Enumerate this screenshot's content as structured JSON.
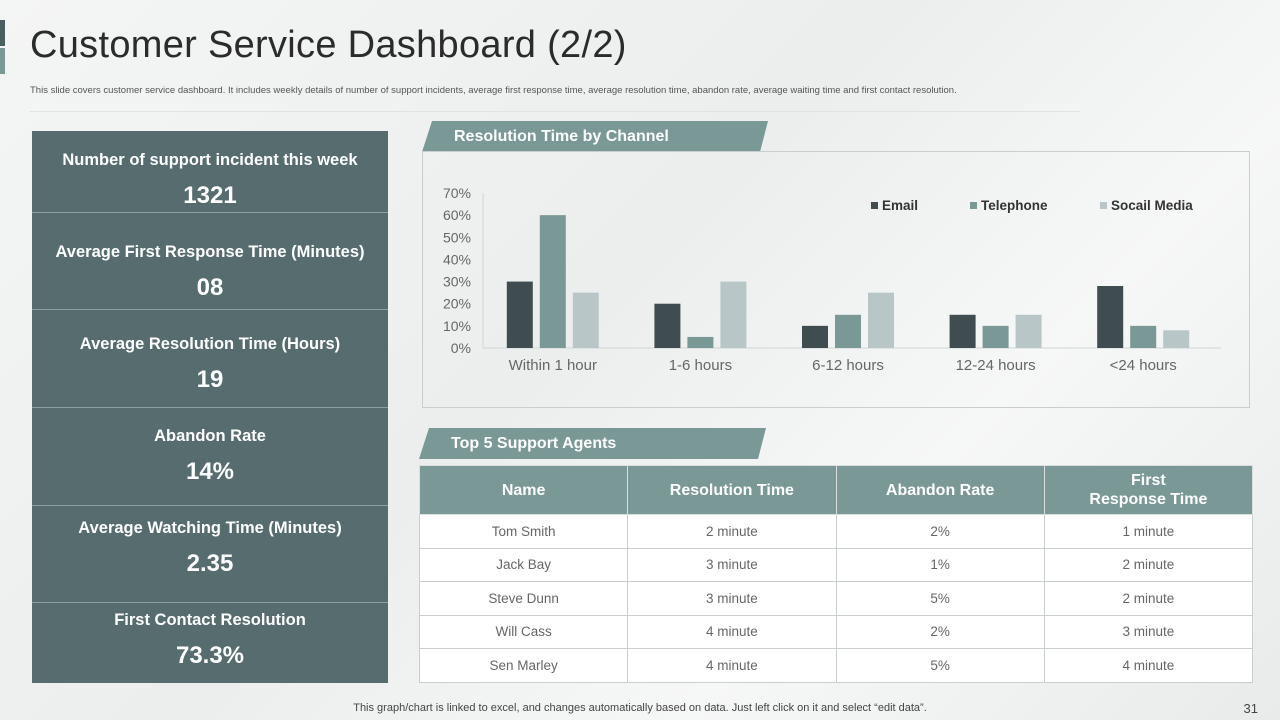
{
  "header": {
    "title": "Customer Service Dashboard (2/2)",
    "subtitle": "This slide covers customer service dashboard. It includes weekly details of number of support incidents, average first response time, average resolution time,  abandon rate, average waiting time and first contact resolution."
  },
  "kpis": [
    {
      "label": "Number of support incident this week",
      "value": "1321"
    },
    {
      "label": "Average First Response Time (Minutes)",
      "value": "08"
    },
    {
      "label": "Average Resolution Time (Hours)",
      "value": "19"
    },
    {
      "label": "Abandon Rate",
      "value": "14%"
    },
    {
      "label": "Average Watching Time (Minutes)",
      "value": "2.35"
    },
    {
      "label": "First Contact Resolution",
      "value": "73.3%"
    }
  ],
  "chart_section": {
    "title": "Resolution Time by Channel"
  },
  "chart_data": {
    "type": "bar",
    "title": "Resolution Time by Channel",
    "categories": [
      "Within 1 hour",
      "1-6 hours",
      "6-12 hours",
      "12-24 hours",
      "<24 hours"
    ],
    "series": [
      {
        "name": "Email",
        "color": "#3f4d51",
        "values": [
          30,
          20,
          10,
          15,
          28
        ]
      },
      {
        "name": "Telephone",
        "color": "#7a9896",
        "values": [
          60,
          5,
          15,
          10,
          10
        ]
      },
      {
        "name": "Socail Media",
        "color": "#b9c6c8",
        "values": [
          25,
          30,
          25,
          15,
          8
        ]
      }
    ],
    "yticks": [
      "0%",
      "10%",
      "20%",
      "30%",
      "40%",
      "50%",
      "60%",
      "70%"
    ],
    "ylim": [
      0,
      70
    ],
    "xlabel": "",
    "ylabel": "",
    "legend": "top-right",
    "grid": false
  },
  "agents_section": {
    "title": "Top 5 Support Agents"
  },
  "agents_table": {
    "headers": [
      "Name",
      "Resolution Time",
      "Abandon Rate",
      "First\nResponse Time"
    ],
    "rows": [
      [
        "Tom Smith",
        "2 minute",
        "2%",
        "1 minute"
      ],
      [
        "Jack Bay",
        "3 minute",
        "1%",
        "2 minute"
      ],
      [
        "Steve Dunn",
        "3 minute",
        "5%",
        "2 minute"
      ],
      [
        "Will Cass",
        "4 minute",
        "2%",
        "3 minute"
      ],
      [
        "Sen Marley",
        "4 minute",
        "5%",
        "4 minute"
      ]
    ]
  },
  "footer": {
    "note": "This graph/chart is linked to excel,  and changes automatically based on data. Just left click on it and select “edit data”.",
    "page_number": "31"
  }
}
